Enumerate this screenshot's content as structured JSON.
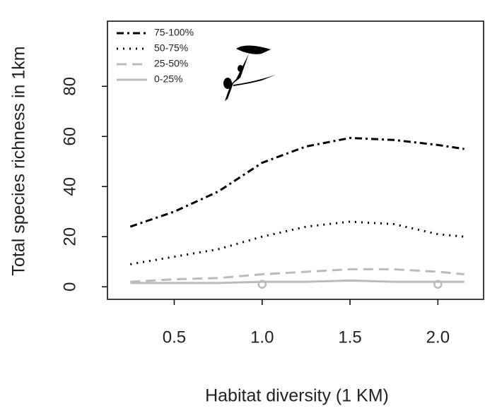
{
  "chart_data": {
    "type": "line",
    "x_label": "Habitat diversity (1 KM)",
    "y_label": "Total species richness in 1km",
    "xlim": [
      0.12,
      2.26
    ],
    "ylim": [
      -5,
      106
    ],
    "xticks": [
      {
        "value": 0.5,
        "label": "0.5"
      },
      {
        "value": 1.0,
        "label": "1.0"
      },
      {
        "value": 1.5,
        "label": "1.5"
      },
      {
        "value": 2.0,
        "label": "2.0"
      }
    ],
    "yticks": [
      0,
      20,
      40,
      60,
      80
    ],
    "x": [
      0.25,
      0.5,
      0.75,
      1.0,
      1.25,
      1.5,
      1.75,
      2.0,
      2.15
    ],
    "series": [
      {
        "name": "75-100%",
        "color": "#000000",
        "dash": "10,5,3,5",
        "values": [
          24,
          30,
          38,
          49.5,
          56,
          59.4,
          58.6,
          56.6,
          55
        ]
      },
      {
        "name": "50-75%",
        "color": "#000000",
        "dash": "2,7",
        "values": [
          9,
          12,
          15,
          20,
          24,
          26,
          25,
          21,
          20
        ]
      },
      {
        "name": "25-50%",
        "color": "#bbbbbb",
        "dash": "14,8",
        "values": [
          2,
          3,
          3.5,
          5,
          6,
          7,
          7,
          6,
          5
        ]
      },
      {
        "name": "0-25%",
        "color": "#bbbbbb",
        "dash": "none",
        "values": [
          1.5,
          1.5,
          1.5,
          2,
          2,
          2.5,
          2,
          2,
          2
        ]
      }
    ],
    "points": {
      "color": "#bbbbbb",
      "x": [
        1.0,
        2.0
      ],
      "values": [
        1,
        1
      ]
    },
    "legend": "top-left"
  }
}
